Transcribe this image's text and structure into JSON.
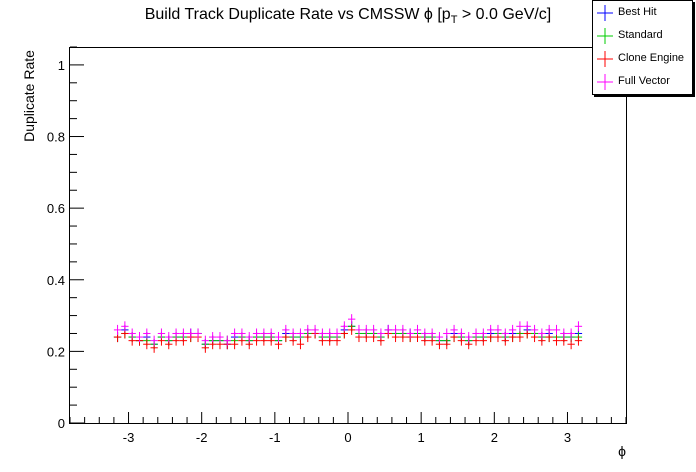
{
  "title": {
    "main": "Build Track Duplicate Rate vs CMSSW ϕ [p",
    "subscript": "T",
    "suffix": " > 0.0 GeV/c]"
  },
  "chart_data": {
    "type": "scatter",
    "title": "Build Track Duplicate Rate vs CMSSW ϕ [pT > 0.0 GeV/c]",
    "xlabel": "ϕ",
    "ylabel": "Duplicate Rate",
    "xlim": [
      -3.8,
      3.8
    ],
    "ylim": [
      0,
      1.05
    ],
    "x_ticks": [
      "-3",
      "-2",
      "-1",
      "0",
      "1",
      "2",
      "3"
    ],
    "y_ticks": [
      "0",
      "0.2",
      "0.4",
      "0.6",
      "0.8",
      "1"
    ],
    "grid": false,
    "legend_position": "top-right",
    "x_bin_half_width": 0.05,
    "series": [
      {
        "name": "Best Hit",
        "color": "#0000ff",
        "x": [
          -3.15,
          -3.05,
          -2.95,
          -2.85,
          -2.75,
          -2.65,
          -2.55,
          -2.45,
          -2.35,
          -2.25,
          -2.15,
          -2.05,
          -1.95,
          -1.85,
          -1.75,
          -1.65,
          -1.55,
          -1.45,
          -1.35,
          -1.25,
          -1.15,
          -1.05,
          -0.95,
          -0.85,
          -0.75,
          -0.65,
          -0.55,
          -0.45,
          -0.35,
          -0.25,
          -0.15,
          -0.05,
          0.05,
          0.15,
          0.25,
          0.35,
          0.45,
          0.55,
          0.65,
          0.75,
          0.85,
          0.95,
          1.05,
          1.15,
          1.25,
          1.35,
          1.45,
          1.55,
          1.65,
          1.75,
          1.85,
          1.95,
          2.05,
          2.15,
          2.25,
          2.35,
          2.45,
          2.55,
          2.65,
          2.75,
          2.85,
          2.95,
          3.05,
          3.15
        ],
        "y": [
          0.24,
          0.26,
          0.24,
          0.23,
          0.24,
          0.22,
          0.24,
          0.23,
          0.24,
          0.24,
          0.25,
          0.25,
          0.22,
          0.23,
          0.23,
          0.22,
          0.24,
          0.24,
          0.23,
          0.24,
          0.24,
          0.24,
          0.23,
          0.25,
          0.24,
          0.24,
          0.25,
          0.25,
          0.24,
          0.24,
          0.24,
          0.26,
          0.27,
          0.25,
          0.25,
          0.25,
          0.24,
          0.26,
          0.25,
          0.25,
          0.25,
          0.25,
          0.24,
          0.24,
          0.23,
          0.23,
          0.25,
          0.24,
          0.23,
          0.24,
          0.24,
          0.25,
          0.25,
          0.24,
          0.25,
          0.25,
          0.26,
          0.25,
          0.24,
          0.25,
          0.24,
          0.24,
          0.24,
          0.25
        ]
      },
      {
        "name": "Standard",
        "color": "#00cc00",
        "x": [
          -3.15,
          -3.05,
          -2.95,
          -2.85,
          -2.75,
          -2.65,
          -2.55,
          -2.45,
          -2.35,
          -2.25,
          -2.15,
          -2.05,
          -1.95,
          -1.85,
          -1.75,
          -1.65,
          -1.55,
          -1.45,
          -1.35,
          -1.25,
          -1.15,
          -1.05,
          -0.95,
          -0.85,
          -0.75,
          -0.65,
          -0.55,
          -0.45,
          -0.35,
          -0.25,
          -0.15,
          -0.05,
          0.05,
          0.15,
          0.25,
          0.35,
          0.45,
          0.55,
          0.65,
          0.75,
          0.85,
          0.95,
          1.05,
          1.15,
          1.25,
          1.35,
          1.45,
          1.55,
          1.65,
          1.75,
          1.85,
          1.95,
          2.05,
          2.15,
          2.25,
          2.35,
          2.45,
          2.55,
          2.65,
          2.75,
          2.85,
          2.95,
          3.05,
          3.15
        ],
        "y": [
          0.24,
          0.25,
          0.24,
          0.23,
          0.23,
          0.22,
          0.24,
          0.23,
          0.24,
          0.24,
          0.24,
          0.25,
          0.22,
          0.23,
          0.23,
          0.23,
          0.23,
          0.24,
          0.23,
          0.24,
          0.24,
          0.24,
          0.23,
          0.24,
          0.24,
          0.24,
          0.25,
          0.25,
          0.24,
          0.24,
          0.24,
          0.25,
          0.27,
          0.25,
          0.25,
          0.25,
          0.24,
          0.25,
          0.25,
          0.25,
          0.24,
          0.25,
          0.24,
          0.24,
          0.23,
          0.23,
          0.24,
          0.24,
          0.23,
          0.24,
          0.24,
          0.24,
          0.25,
          0.24,
          0.24,
          0.25,
          0.25,
          0.25,
          0.24,
          0.24,
          0.24,
          0.24,
          0.24,
          0.24
        ]
      },
      {
        "name": "Clone Engine",
        "color": "#ff0000",
        "x": [
          -3.15,
          -3.05,
          -2.95,
          -2.85,
          -2.75,
          -2.65,
          -2.55,
          -2.45,
          -2.35,
          -2.25,
          -2.15,
          -2.05,
          -1.95,
          -1.85,
          -1.75,
          -1.65,
          -1.55,
          -1.45,
          -1.35,
          -1.25,
          -1.15,
          -1.05,
          -0.95,
          -0.85,
          -0.75,
          -0.65,
          -0.55,
          -0.45,
          -0.35,
          -0.25,
          -0.15,
          -0.05,
          0.05,
          0.15,
          0.25,
          0.35,
          0.45,
          0.55,
          0.65,
          0.75,
          0.85,
          0.95,
          1.05,
          1.15,
          1.25,
          1.35,
          1.45,
          1.55,
          1.65,
          1.75,
          1.85,
          1.95,
          2.05,
          2.15,
          2.25,
          2.35,
          2.45,
          2.55,
          2.65,
          2.75,
          2.85,
          2.95,
          3.05,
          3.15
        ],
        "y": [
          0.24,
          0.25,
          0.23,
          0.23,
          0.22,
          0.21,
          0.23,
          0.22,
          0.23,
          0.23,
          0.24,
          0.24,
          0.21,
          0.22,
          0.22,
          0.22,
          0.22,
          0.23,
          0.22,
          0.23,
          0.23,
          0.23,
          0.22,
          0.24,
          0.23,
          0.22,
          0.24,
          0.25,
          0.23,
          0.23,
          0.23,
          0.25,
          0.26,
          0.24,
          0.24,
          0.24,
          0.23,
          0.25,
          0.24,
          0.24,
          0.24,
          0.24,
          0.23,
          0.23,
          0.22,
          0.22,
          0.24,
          0.23,
          0.22,
          0.23,
          0.23,
          0.24,
          0.24,
          0.23,
          0.24,
          0.24,
          0.25,
          0.24,
          0.23,
          0.24,
          0.23,
          0.23,
          0.22,
          0.23
        ]
      },
      {
        "name": "Full Vector",
        "color": "#ff00ff",
        "x": [
          -3.15,
          -3.05,
          -2.95,
          -2.85,
          -2.75,
          -2.65,
          -2.55,
          -2.45,
          -2.35,
          -2.25,
          -2.15,
          -2.05,
          -1.95,
          -1.85,
          -1.75,
          -1.65,
          -1.55,
          -1.45,
          -1.35,
          -1.25,
          -1.15,
          -1.05,
          -0.95,
          -0.85,
          -0.75,
          -0.65,
          -0.55,
          -0.45,
          -0.35,
          -0.25,
          -0.15,
          -0.05,
          0.05,
          0.15,
          0.25,
          0.35,
          0.45,
          0.55,
          0.65,
          0.75,
          0.85,
          0.95,
          1.05,
          1.15,
          1.25,
          1.35,
          1.45,
          1.55,
          1.65,
          1.75,
          1.85,
          1.95,
          2.05,
          2.15,
          2.25,
          2.35,
          2.45,
          2.55,
          2.65,
          2.75,
          2.85,
          2.95,
          3.05,
          3.15
        ],
        "y": [
          0.26,
          0.27,
          0.25,
          0.24,
          0.25,
          0.23,
          0.25,
          0.24,
          0.25,
          0.25,
          0.25,
          0.25,
          0.23,
          0.24,
          0.24,
          0.23,
          0.25,
          0.25,
          0.24,
          0.25,
          0.25,
          0.25,
          0.24,
          0.26,
          0.25,
          0.25,
          0.26,
          0.26,
          0.25,
          0.25,
          0.25,
          0.27,
          0.29,
          0.26,
          0.26,
          0.26,
          0.25,
          0.26,
          0.26,
          0.26,
          0.25,
          0.26,
          0.25,
          0.25,
          0.24,
          0.25,
          0.26,
          0.25,
          0.24,
          0.25,
          0.25,
          0.26,
          0.26,
          0.25,
          0.26,
          0.27,
          0.27,
          0.26,
          0.25,
          0.26,
          0.26,
          0.25,
          0.25,
          0.27
        ]
      }
    ]
  }
}
